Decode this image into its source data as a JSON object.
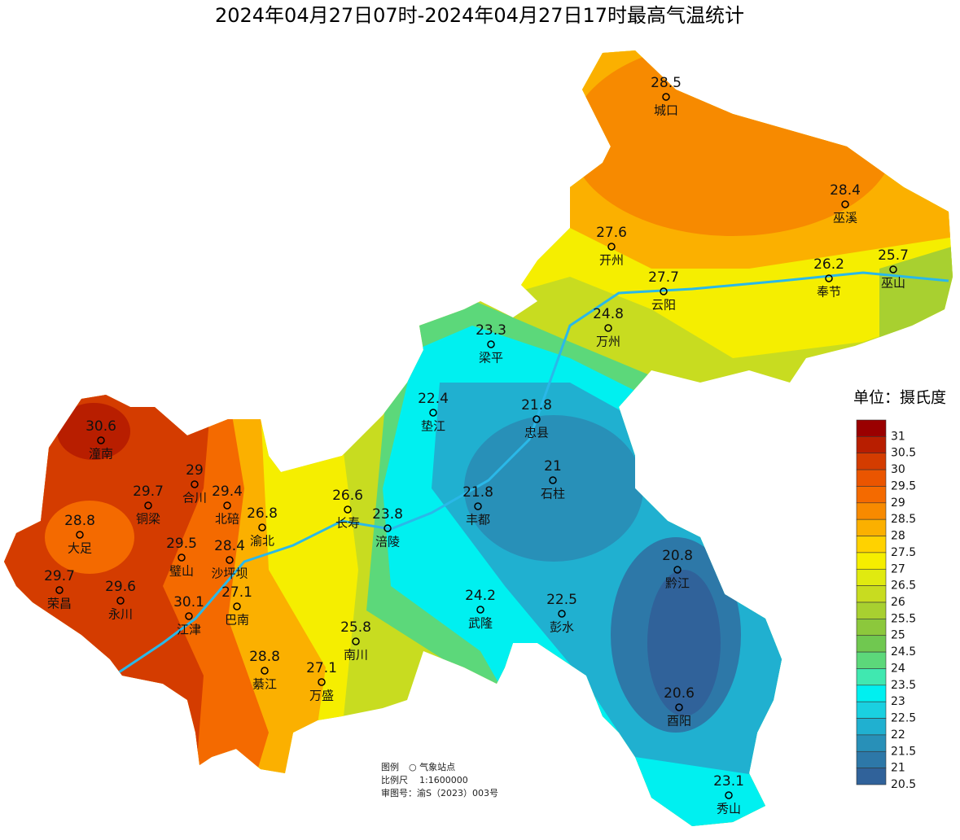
{
  "title": "2024年04月27日07时-2024年04月27日17时最高气温统计",
  "stations": [
    {
      "name": "城口",
      "value": 28.5
    },
    {
      "name": "巫溪",
      "value": 28.4
    },
    {
      "name": "开州",
      "value": 27.6
    },
    {
      "name": "云阳",
      "value": 27.7
    },
    {
      "name": "奉节",
      "value": 26.2
    },
    {
      "name": "巫山",
      "value": 25.7
    },
    {
      "name": "万州",
      "value": 24.8
    },
    {
      "name": "梁平",
      "value": 23.3
    },
    {
      "name": "垫江",
      "value": 22.4
    },
    {
      "name": "忠县",
      "value": 21.8
    },
    {
      "name": "石柱",
      "value": 21
    },
    {
      "name": "丰都",
      "value": 21.8
    },
    {
      "name": "长寿",
      "value": 26.6
    },
    {
      "name": "涪陵",
      "value": 23.8
    },
    {
      "name": "潼南",
      "value": 30.6
    },
    {
      "name": "合川",
      "value": 29
    },
    {
      "name": "铜梁",
      "value": 29.7
    },
    {
      "name": "北碚",
      "value": 29.4
    },
    {
      "name": "渝北",
      "value": 26.8
    },
    {
      "name": "大足",
      "value": 28.8
    },
    {
      "name": "璧山",
      "value": 29.5
    },
    {
      "name": "沙坪坝",
      "value": 28.4
    },
    {
      "name": "荣昌",
      "value": 29.7
    },
    {
      "name": "永川",
      "value": 29.6
    },
    {
      "name": "江津",
      "value": 30.1
    },
    {
      "name": "巴南",
      "value": 27.1
    },
    {
      "name": "南川",
      "value": 25.8
    },
    {
      "name": "武隆",
      "value": 24.2
    },
    {
      "name": "彭水",
      "value": 22.5
    },
    {
      "name": "黔江",
      "value": 20.8
    },
    {
      "name": "綦江",
      "value": 28.8
    },
    {
      "name": "万盛",
      "value": 27.1
    },
    {
      "name": "酉阳",
      "value": 20.6
    },
    {
      "name": "秀山",
      "value": 23.1
    }
  ],
  "legend": {
    "title": "单位：摄氏度",
    "levels": [
      {
        "label": "31",
        "color": "#9a0000"
      },
      {
        "label": "30.5",
        "color": "#b81e00"
      },
      {
        "label": "30",
        "color": "#d43c00"
      },
      {
        "label": "29.5",
        "color": "#ea5500"
      },
      {
        "label": "29",
        "color": "#f46a00"
      },
      {
        "label": "28.5",
        "color": "#f78a00"
      },
      {
        "label": "28",
        "color": "#fbb000"
      },
      {
        "label": "27.5",
        "color": "#ffd200"
      },
      {
        "label": "27",
        "color": "#f5ee00"
      },
      {
        "label": "26.5",
        "color": "#e0ea10"
      },
      {
        "label": "26",
        "color": "#c8dc20"
      },
      {
        "label": "25.5",
        "color": "#a8d030"
      },
      {
        "label": "25",
        "color": "#8cc83c"
      },
      {
        "label": "24.5",
        "color": "#70c850"
      },
      {
        "label": "24",
        "color": "#5cd87a"
      },
      {
        "label": "23.5",
        "color": "#40e8b0"
      },
      {
        "label": "23",
        "color": "#00f0f0"
      },
      {
        "label": "22.5",
        "color": "#1ad0e0"
      },
      {
        "label": "22",
        "color": "#20b0d0"
      },
      {
        "label": "21.5",
        "color": "#2890b8"
      },
      {
        "label": "21",
        "color": "#2d78a8"
      },
      {
        "label": "20.5",
        "color": "#30629a"
      }
    ]
  },
  "footnote": {
    "legend_label": "图例",
    "legend_item": "○ 气象站点",
    "scale_label": "比例尺",
    "scale": "1:1600000",
    "approval": "审图号：渝S（2023）003号"
  }
}
